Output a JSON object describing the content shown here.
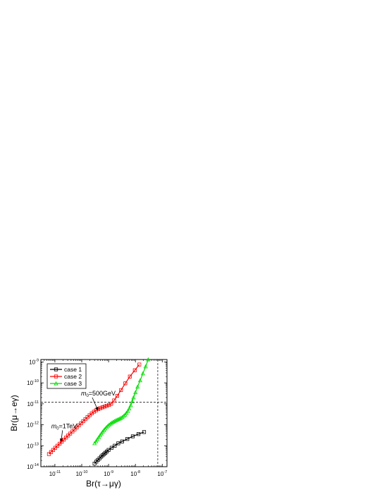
{
  "chart_data": {
    "type": "line",
    "xlabel": "Br(τ→μγ)",
    "ylabel": "Br(μ→eγ)",
    "x_scale": "log",
    "y_scale": "log",
    "xlim": [
      3e-12,
      1.5e-07
    ],
    "ylim": [
      1e-14,
      1.3e-09
    ],
    "x_ticks": [
      {
        "value": 1e-11,
        "base": "10",
        "exp": "-11"
      },
      {
        "value": 1e-10,
        "base": "10",
        "exp": "-10"
      },
      {
        "value": 1e-09,
        "base": "10",
        "exp": "-9"
      },
      {
        "value": 1e-08,
        "base": "10",
        "exp": "-8"
      },
      {
        "value": 1e-07,
        "base": "10",
        "exp": "-7"
      }
    ],
    "y_ticks": [
      {
        "value": 1e-14,
        "base": "10",
        "exp": "-14"
      },
      {
        "value": 1e-13,
        "base": "10",
        "exp": "-13"
      },
      {
        "value": 1e-12,
        "base": "10",
        "exp": "-12"
      },
      {
        "value": 1e-11,
        "base": "10",
        "exp": "-11"
      },
      {
        "value": 1e-10,
        "base": "10",
        "exp": "-10"
      },
      {
        "value": 1e-09,
        "base": "10",
        "exp": "-9"
      }
    ],
    "legend_position": "top-left",
    "grid": false,
    "reference_lines": {
      "horizontal_y": 1.2e-11,
      "vertical_x": 6.8e-08
    },
    "series": [
      {
        "name": "case 1",
        "color": "#000000",
        "marker": "open-square",
        "x": [
          3e-10,
          3.5e-10,
          4e-10,
          4.6e-10,
          5.3e-10,
          6e-10,
          6.8e-10,
          7.6e-10,
          8.6e-10,
          1e-09,
          1.3e-09,
          1.7e-09,
          2.3e-09,
          3.2e-09,
          5e-09,
          8e-09,
          1.3e-08,
          2.1e-08
        ],
        "y": [
          1.4e-14,
          1.75e-14,
          2.1e-14,
          2.5e-14,
          3e-14,
          3.5e-14,
          4e-14,
          4.6e-14,
          5.3e-14,
          6.3e-14,
          8e-14,
          1e-13,
          1.3e-13,
          1.6e-13,
          2.1e-13,
          2.8e-13,
          3.6e-13,
          4.5e-13
        ]
      },
      {
        "name": "case 2",
        "color": "#ff0000",
        "marker": "open-square",
        "x": [
          6e-12,
          7.2e-12,
          8.6e-12,
          1.03e-11,
          1.24e-11,
          1.5e-11,
          1.8e-11,
          2.15e-11,
          2.6e-11,
          3.1e-11,
          3.7e-11,
          4.5e-11,
          5.4e-11,
          6.5e-11,
          7.8e-11,
          9.4e-11,
          1.13e-10,
          1.36e-10,
          1.63e-10,
          1.96e-10,
          2.36e-10,
          2.84e-10,
          3.4e-10,
          4.1e-10,
          4.9e-10,
          5.9e-10,
          7.1e-10,
          8.5e-10,
          1.03e-09,
          1.25e-09,
          1.6e-09,
          2.1e-09,
          2.9e-09,
          4.2e-09,
          6.2e-09,
          9.5e-09,
          1.4e-08,
          2.1e-08
        ],
        "y": [
          4e-14,
          5e-14,
          6.3e-14,
          8e-14,
          1e-13,
          1.25e-13,
          1.55e-13,
          1.95e-13,
          2.45e-13,
          3.05e-13,
          3.8e-13,
          4.8e-13,
          6e-13,
          7.5e-13,
          9.4e-13,
          1.18e-12,
          1.48e-12,
          1.85e-12,
          2.3e-12,
          2.85e-12,
          3.5e-12,
          4.2e-12,
          4.9e-12,
          5.6e-12,
          6.2e-12,
          6.8e-12,
          7.4e-12,
          8e-12,
          8.8e-12,
          1e-11,
          1.45e-11,
          2.4e-11,
          4.5e-11,
          9.5e-11,
          2e-10,
          4e-10,
          7.5e-10,
          1.35e-09
        ]
      },
      {
        "name": "case 3",
        "color": "#00dd00",
        "marker": "open-triangle",
        "x": [
          3e-10,
          3.4e-10,
          3.8e-10,
          4.3e-10,
          4.8e-10,
          5.4e-10,
          6e-10,
          6.7e-10,
          7.5e-10,
          8.4e-10,
          9.4e-10,
          1.05e-09,
          1.18e-09,
          1.32e-09,
          1.48e-09,
          1.66e-09,
          1.86e-09,
          2.08e-09,
          2.33e-09,
          2.6e-09,
          2.9e-09,
          3.25e-09,
          3.65e-09,
          4.1e-09,
          4.6e-09,
          5.2e-09,
          5.9e-09,
          6.7e-09,
          7.6e-09,
          8.5e-09,
          1e-08,
          1.2e-08,
          1.5e-08,
          1.9e-08,
          2.4e-08,
          3e-08
        ],
        "y": [
          1.3e-13,
          1.6e-13,
          2e-13,
          2.5e-13,
          3.1e-13,
          3.8e-13,
          4.6e-13,
          5.5e-13,
          6.5e-13,
          7.6e-13,
          8.8e-13,
          1e-12,
          1.12e-12,
          1.24e-12,
          1.36e-12,
          1.48e-12,
          1.6e-12,
          1.72e-12,
          1.84e-12,
          1.96e-12,
          2.1e-12,
          2.3e-12,
          2.6e-12,
          3e-12,
          3.6e-12,
          4.5e-12,
          6e-12,
          8.5e-12,
          1.3e-11,
          2e-11,
          3.5e-11,
          6.5e-11,
          1.3e-10,
          2.8e-10,
          6e-10,
          1.3e-09
        ]
      }
    ],
    "annotations": [
      {
        "id": "m0-1tev",
        "prefix": "m",
        "sub": "0",
        "suffix": "=1TeV",
        "point_x": 1.7e-11,
        "point_y": 1.45e-13
      },
      {
        "id": "m0-500gev",
        "prefix": "m",
        "sub": "0",
        "suffix": "=500GeV",
        "point_x": 4e-10,
        "point_y": 4.6e-12
      }
    ]
  }
}
